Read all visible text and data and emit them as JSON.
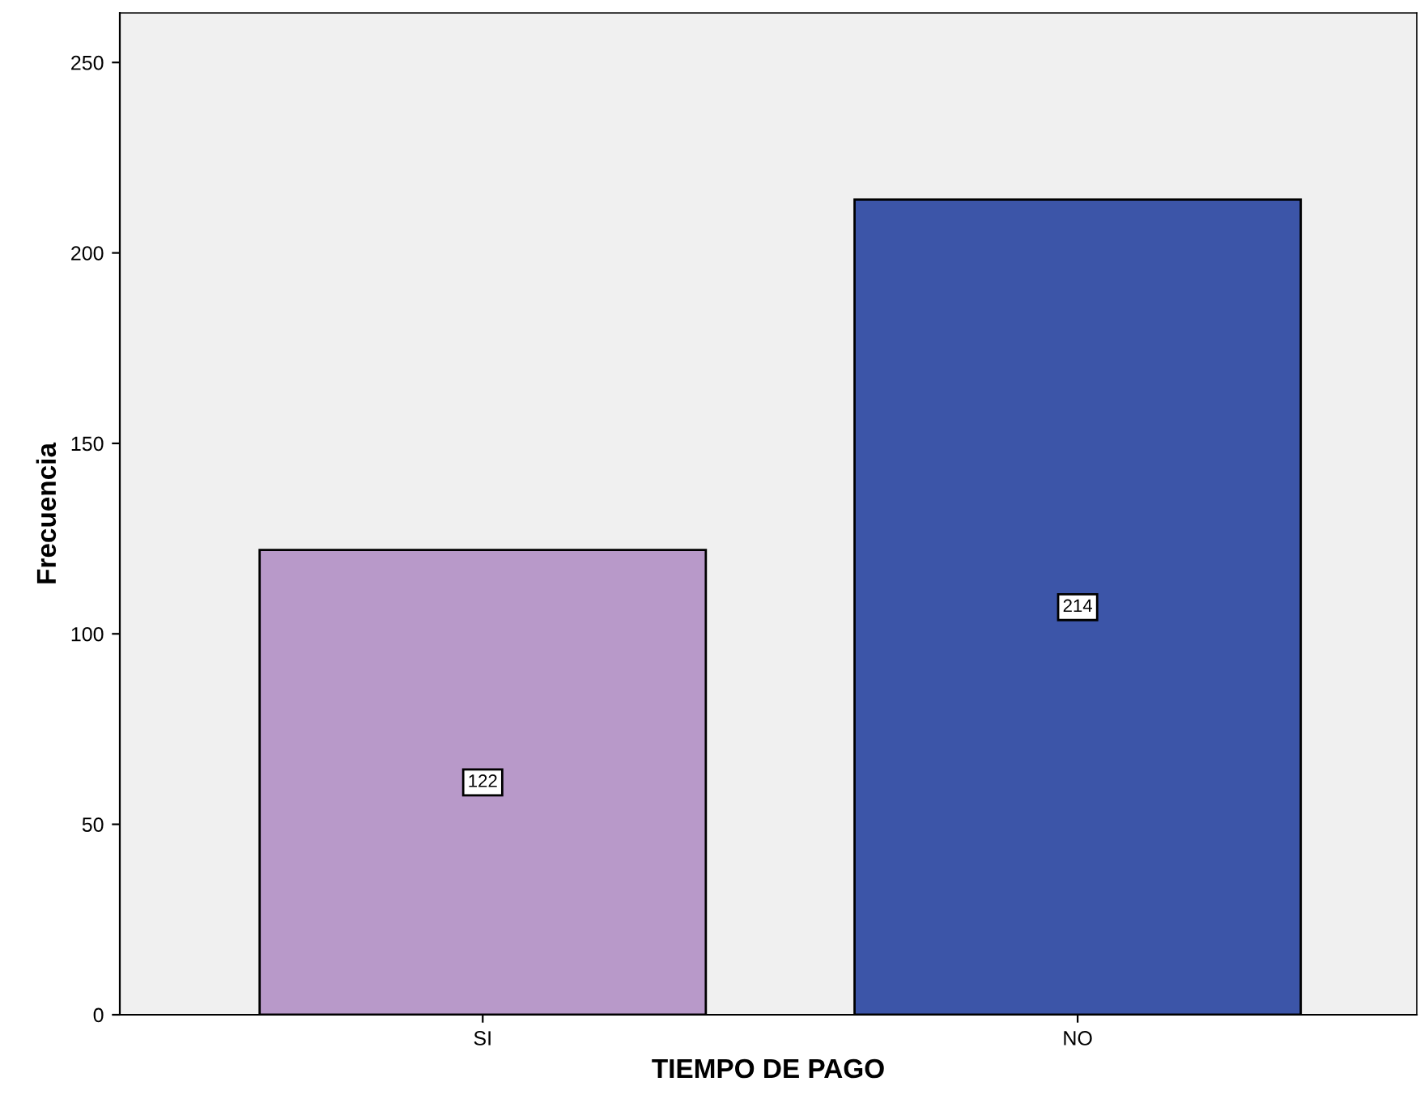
{
  "chart_data": {
    "type": "bar",
    "xlabel": "TIEMPO DE PAGO",
    "ylabel": "Frecuencia",
    "categories": [
      "SI",
      "NO"
    ],
    "values": [
      122,
      214
    ],
    "colors": [
      "#b899c9",
      "#3c55a8"
    ],
    "ylim": [
      0,
      263
    ],
    "yticks": [
      0,
      50,
      100,
      150,
      200,
      250
    ],
    "data_labels": true,
    "grid": false
  }
}
